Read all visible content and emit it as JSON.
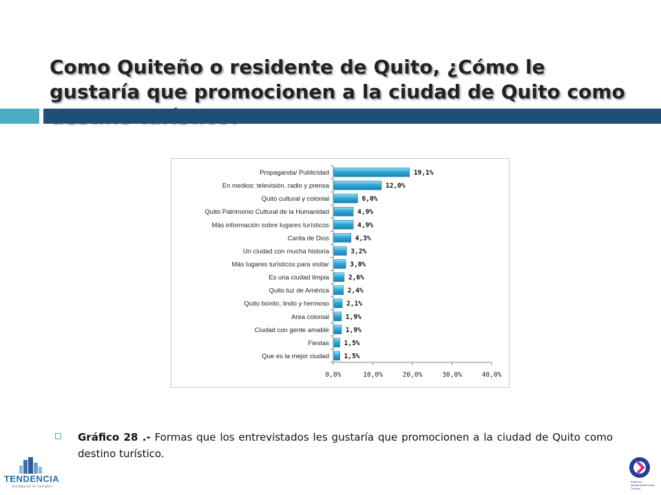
{
  "title": "Como Quiteño o residente de Quito, ¿Cómo le gustaría que promocionen a la ciudad de Quito como destino turístico?",
  "colors": {
    "accent_light": "#4bacc6",
    "accent_dark": "#1f4e79",
    "bar": "#31a9d9"
  },
  "chart_data": {
    "type": "bar",
    "orientation": "horizontal",
    "categories": [
      "Propaganda/ Publicidad",
      "En medios: televisión, radio y prensa",
      "Quito cultural y colonial",
      "Quito Patrimonio Cultural de la Humanidad",
      "Más información sobre lugares turísticos",
      "Carita de Dios",
      "Un ciudad con mucha historia",
      "Más lugares turísticos para visitar",
      "Es una ciudad limpia",
      "Quito luz de América",
      "Quito bonito, lindo y hermoso",
      "Area colonial",
      "Ciudad con gente amable",
      "Fiestas",
      "Que es la mejor ciudad"
    ],
    "values": [
      19.1,
      12.0,
      6.0,
      4.9,
      4.9,
      4.3,
      3.2,
      3.0,
      2.6,
      2.4,
      2.1,
      1.9,
      1.9,
      1.5,
      1.5
    ],
    "value_labels": [
      "19,1%",
      "12,0%",
      "6,0%",
      "4,9%",
      "4,9%",
      "4,3%",
      "3,2%",
      "3,0%",
      "2,6%",
      "2,4%",
      "2,1%",
      "1,9%",
      "1,9%",
      "1,5%",
      "1,5%"
    ],
    "xlim": [
      0,
      40
    ],
    "xticks": [
      0,
      10,
      20,
      30,
      40
    ],
    "xtick_labels": [
      "0,0%",
      "10,0%",
      "20,0%",
      "30,0%",
      "40,0%"
    ],
    "grid": false,
    "legend": "none"
  },
  "caption": {
    "lead": "Gráfico 28 .-",
    "text": " Formas que los entrevistados les gustaría que promocionen a la ciudad de Quito como destino turístico."
  },
  "logos": {
    "left_text": "TENDENCIA",
    "left_sub": "investigación de mercados",
    "right_text": "Empresa Metropolitana Quito Turismo"
  }
}
